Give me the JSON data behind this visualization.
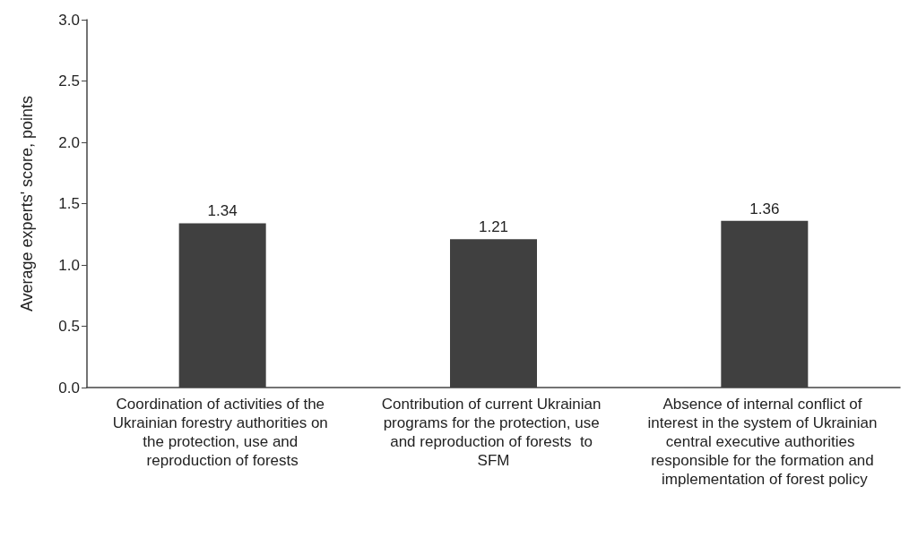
{
  "chart_data": {
    "type": "bar",
    "ylabel": "Average experts' score, points",
    "categories": [
      "Coordination of activities of the Ukrainian forestry authorities on the protection, use and reproduction of forests",
      "Contribution of current Ukrainian programs for the protection, use and reproduction of forests  to SFM",
      "Absence of internal conflict of interest in the system of Ukrainian central executive authorities  responsible for the formation and implementation of forest policy"
    ],
    "values": [
      1.34,
      1.21,
      1.36
    ],
    "color": "#404040",
    "data_labels": true,
    "ylim": [
      0,
      3
    ],
    "yticks": [
      {
        "value": 0,
        "label": "0.0"
      },
      0.5,
      {
        "value": 1,
        "label": "1.0"
      },
      1.5,
      {
        "value": 2,
        "label": "2.0"
      },
      2.5,
      {
        "value": 3,
        "label": "3.0"
      }
    ],
    "grid": false
  }
}
